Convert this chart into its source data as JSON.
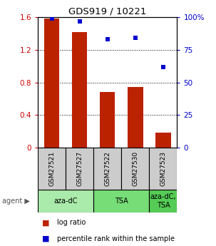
{
  "title": "GDS919 / 10221",
  "categories": [
    "GSM27521",
    "GSM27527",
    "GSM27522",
    "GSM27530",
    "GSM27523"
  ],
  "log_ratios": [
    1.58,
    1.42,
    0.68,
    0.74,
    0.18
  ],
  "percentile_ranks": [
    99,
    97,
    83,
    84,
    62
  ],
  "bar_color": "#bb2200",
  "dot_color": "#0000cc",
  "ylim_left": [
    0,
    1.6
  ],
  "ylim_right": [
    0,
    100
  ],
  "yticks_left": [
    0,
    0.4,
    0.8,
    1.2,
    1.6
  ],
  "ytick_labels_left": [
    "0",
    "0.4",
    "0.8",
    "1.2",
    "1.6"
  ],
  "yticks_right": [
    0,
    25,
    50,
    75,
    100
  ],
  "ytick_labels_right": [
    "0",
    "25",
    "50",
    "75",
    "100%"
  ],
  "agent_groups": [
    {
      "label": "aza-dC",
      "start": 0,
      "end": 2,
      "color": "#aaeaaa"
    },
    {
      "label": "TSA",
      "start": 2,
      "end": 4,
      "color": "#77dd77"
    },
    {
      "label": "aza-dC,\nTSA",
      "start": 4,
      "end": 5,
      "color": "#55cc55"
    }
  ],
  "legend_items": [
    {
      "label": "log ratio",
      "color": "#bb2200"
    },
    {
      "label": "percentile rank within the sample",
      "color": "#0000cc"
    }
  ],
  "gsm_box_color": "#cccccc",
  "background_color": "#ffffff",
  "label_color_left": "#cc0000",
  "label_color_right": "#0000cc"
}
